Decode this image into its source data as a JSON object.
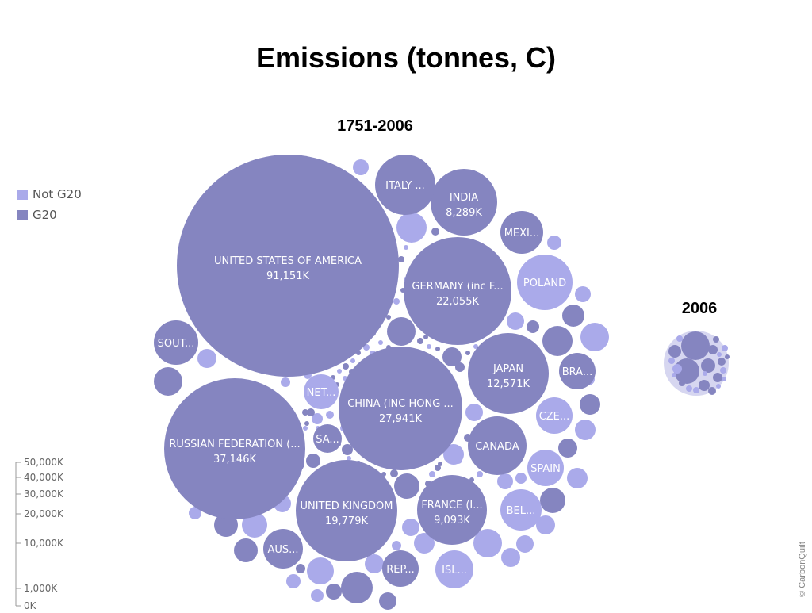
{
  "title": "Emissions (tonnes, C)",
  "copyright": "© CarbonQuilt",
  "legend": [
    {
      "label": "Not G20",
      "color": "#aaaaea"
    },
    {
      "label": "G20",
      "color": "#8585c0"
    }
  ],
  "colors": {
    "g20": "#8585c0",
    "not_g20": "#aaaaea"
  },
  "chart_data": [
    {
      "type": "bubble",
      "label": "1751-2006",
      "size_scale_ticks": [
        "50,000K",
        "40,000K",
        "30,000K",
        "20,000K",
        "10,000K",
        "1,000K",
        "0K"
      ],
      "bubbles": [
        {
          "name": "UNITED STATES OF AMERICA",
          "value_label": "91,151K",
          "value": 91151,
          "group": "G20"
        },
        {
          "name": "RUSSIAN FEDERATION (...",
          "value_label": "37,146K",
          "value": 37146,
          "group": "G20"
        },
        {
          "name": "CHINA (INC HONG ...",
          "value_label": "27,941K",
          "value": 27941,
          "group": "G20"
        },
        {
          "name": "GERMANY (inc F...",
          "value_label": "22,055K",
          "value": 22055,
          "group": "G20"
        },
        {
          "name": "UNITED KINGDOM",
          "value_label": "19,779K",
          "value": 19779,
          "group": "G20"
        },
        {
          "name": "JAPAN",
          "value_label": "12,571K",
          "value": 12571,
          "group": "G20"
        },
        {
          "name": "FRANCE (I...",
          "value_label": "9,093K",
          "value": 9093,
          "group": "G20"
        },
        {
          "name": "INDIA",
          "value_label": "8,289K",
          "value": 8289,
          "group": "G20"
        },
        {
          "name": "CANADA",
          "value_label": "",
          "group": "G20"
        },
        {
          "name": "POLAND",
          "value_label": "",
          "group": "Not G20"
        },
        {
          "name": "ITALY ...",
          "value_label": "",
          "group": "G20"
        },
        {
          "name": "MEXI...",
          "value_label": "",
          "group": "G20"
        },
        {
          "name": "SOUT...",
          "value_label": "",
          "group": "G20"
        },
        {
          "name": "BRA...",
          "value_label": "",
          "group": "G20"
        },
        {
          "name": "CZE...",
          "value_label": "",
          "group": "Not G20"
        },
        {
          "name": "SPAIN",
          "value_label": "",
          "group": "Not G20"
        },
        {
          "name": "BEL...",
          "value_label": "",
          "group": "Not G20"
        },
        {
          "name": "AUS...",
          "value_label": "",
          "group": "G20"
        },
        {
          "name": "NET...",
          "value_label": "",
          "group": "Not G20"
        },
        {
          "name": "SA...",
          "value_label": "",
          "group": "G20"
        },
        {
          "name": "REP...",
          "value_label": "",
          "group": "G20"
        },
        {
          "name": "ISL...",
          "value_label": "",
          "group": "Not G20"
        }
      ]
    },
    {
      "type": "bubble",
      "label": "2006",
      "bubbles": []
    }
  ]
}
